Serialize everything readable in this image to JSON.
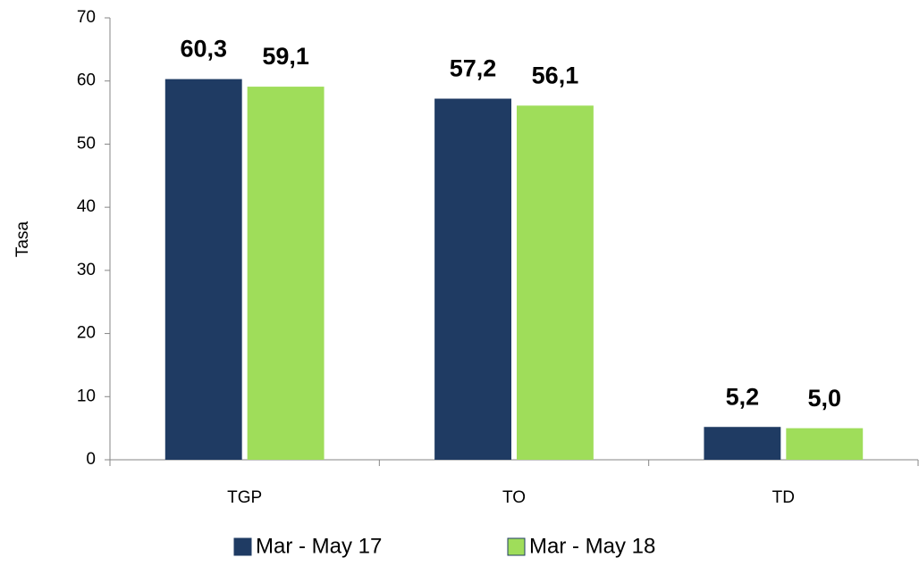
{
  "chart_data": {
    "type": "bar",
    "y_label": "Tasa",
    "categories": [
      "TGP",
      "TO",
      "TD"
    ],
    "series": [
      {
        "name": "Mar - May 17",
        "color": "#1f3b63",
        "label_color": "#1f3b63",
        "values": [
          60.3,
          57.2,
          5.2
        ],
        "value_labels": [
          "60,3",
          "57,2",
          "5,2"
        ]
      },
      {
        "name": "Mar - May 18",
        "color": "#9fdd5a",
        "label_color": "#3b3b10",
        "values": [
          59.1,
          56.1,
          5.0
        ],
        "value_labels": [
          "59,1",
          "56,1",
          "5,0"
        ]
      }
    ],
    "ylim": [
      0,
      70
    ],
    "yticks": [
      0,
      10,
      20,
      30,
      40,
      50,
      60,
      70
    ],
    "grid": false,
    "legend": "bottom"
  }
}
